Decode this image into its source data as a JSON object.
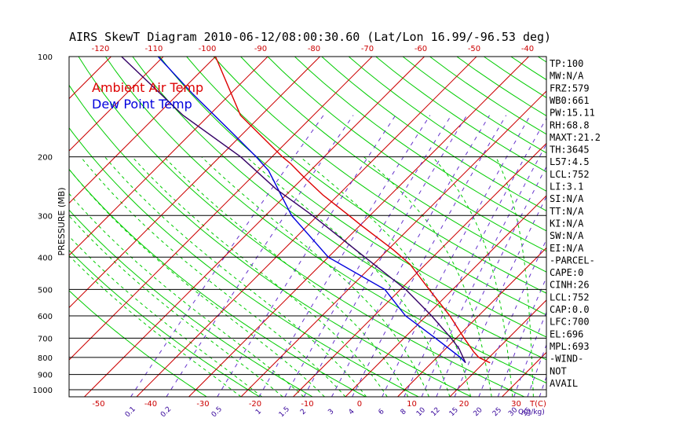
{
  "title": "AIRS SkewT Diagram 2010-06-12/08:00:30.60 (Lat/Lon 16.99/-96.53 deg)",
  "colors": {
    "temp": "#dd0000",
    "dewpoint": "#0000dd",
    "parcel": "#330066",
    "dry_adiabat": "#00cc00",
    "mixing_ratio": "#6633cc",
    "isotherm": "#cc0000",
    "isobar": "#000000",
    "moist_adiabat": "#00cc00"
  },
  "legend": {
    "temp_label": "Ambient Air Temp",
    "dew_label": "Dew Point Temp"
  },
  "ylabel": "PRESSURE (MB)",
  "x_unit_label": "T(C)",
  "mix_unit_label": "Q(g/kg)",
  "pressure_ticks": [
    100,
    200,
    300,
    400,
    500,
    600,
    700,
    800,
    900,
    1000
  ],
  "bottom_temp_ticks": [
    -50,
    -40,
    -30,
    -20,
    -10,
    0,
    10,
    20,
    30
  ],
  "top_temp_ticks": [
    -120,
    -110,
    -100,
    -90,
    -80,
    -70,
    -60,
    -50,
    -40
  ],
  "mixing_ratio_labels": [
    "0.1",
    "0.2",
    "0.5",
    "1",
    "1.5",
    "2",
    "3",
    "4",
    "6",
    "8",
    "10",
    "12",
    "15",
    "20",
    "25",
    "30",
    "35",
    "40"
  ],
  "stats": [
    "TP:100",
    "MW:N/A",
    "FRZ:579",
    "WB0:661",
    "PW:15.11",
    "RH:68.8",
    "MAXT:21.2",
    "TH:3645",
    "L57:4.5",
    "LCL:752",
    "LI:3.1",
    "SI:N/A",
    "TT:N/A",
    "KI:N/A",
    "SW:N/A",
    "EI:N/A",
    "-PARCEL-",
    "CAPE:0",
    "CINH:26",
    "LCL:752",
    "CAP:0.0",
    "LFC:700",
    "EL:696",
    "MPL:693",
    "-WIND-",
    "NOT",
    "AVAIL"
  ],
  "chart_data": {
    "type": "line",
    "title": "AIRS SkewT Diagram 2010-06-12/08:00:30.60 (Lat/Lon 16.99/-96.53 deg)",
    "ylabel": "PRESSURE (MB)",
    "xlabel": "T(C)",
    "y_scale": "log",
    "ylim": [
      1000,
      100
    ],
    "xlim_bottom_surface": [
      -50,
      30
    ],
    "series": [
      {
        "name": "Ambient Air Temp",
        "points": [
          {
            "p": 830,
            "t": 21.2
          },
          {
            "p": 800,
            "t": 18.0
          },
          {
            "p": 770,
            "t": 16.0
          },
          {
            "p": 700,
            "t": 11.5
          },
          {
            "p": 600,
            "t": 4.5
          },
          {
            "p": 500,
            "t": -4.5
          },
          {
            "p": 420,
            "t": -13.0
          },
          {
            "p": 380,
            "t": -19.0
          },
          {
            "p": 320,
            "t": -30.0
          },
          {
            "p": 300,
            "t": -34.0
          },
          {
            "p": 260,
            "t": -43.0
          },
          {
            "p": 230,
            "t": -50.0
          },
          {
            "p": 210,
            "t": -55.0
          },
          {
            "p": 200,
            "t": -58.0
          },
          {
            "p": 150,
            "t": -74.0
          },
          {
            "p": 100,
            "t": -90.0
          }
        ]
      },
      {
        "name": "Dew Point Temp",
        "points": [
          {
            "p": 830,
            "t": 16.5
          },
          {
            "p": 800,
            "t": 14.5
          },
          {
            "p": 700,
            "t": 6.0
          },
          {
            "p": 600,
            "t": -4.0
          },
          {
            "p": 500,
            "t": -13.0
          },
          {
            "p": 400,
            "t": -30.0
          },
          {
            "p": 300,
            "t": -45.0
          },
          {
            "p": 260,
            "t": -51.0
          },
          {
            "p": 220,
            "t": -58.0
          },
          {
            "p": 200,
            "t": -63.0
          },
          {
            "p": 170,
            "t": -72.0
          },
          {
            "p": 130,
            "t": -87.0
          },
          {
            "p": 100,
            "t": -101.0
          }
        ]
      },
      {
        "name": "",
        "points": [
          {
            "p": 830,
            "t": 16.5
          },
          {
            "p": 752,
            "t": 12.5
          },
          {
            "p": 700,
            "t": 9.0
          },
          {
            "p": 600,
            "t": 1.0
          },
          {
            "p": 500,
            "t": -9.0
          },
          {
            "p": 400,
            "t": -23.0
          },
          {
            "p": 300,
            "t": -41.0
          },
          {
            "p": 250,
            "t": -53.0
          },
          {
            "p": 200,
            "t": -66.0
          },
          {
            "p": 150,
            "t": -85.0
          },
          {
            "p": 100,
            "t": -108.0
          }
        ]
      }
    ]
  }
}
